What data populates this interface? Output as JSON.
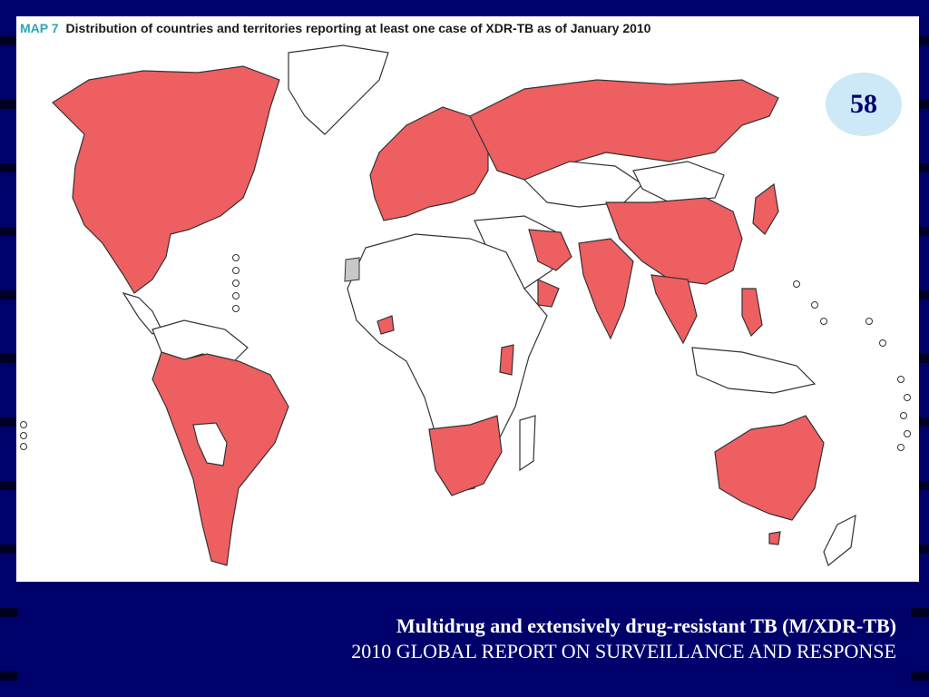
{
  "map": {
    "label": "MAP 7",
    "title": "Distribution of countries and territories reporting at least one case of XDR-TB as of January 2010",
    "count": "58",
    "colors": {
      "reporting": "#ee5f61",
      "not_reporting": "#ffffff",
      "not_applicable": "#c8c8c8",
      "background": "#00006a"
    }
  },
  "caption": {
    "line1": "Multidrug and extensively drug-resistant TB (M/XDR-TB)",
    "line2": "2010 GLOBAL REPORT ON SURVEILLANCE AND RESPONSE"
  }
}
